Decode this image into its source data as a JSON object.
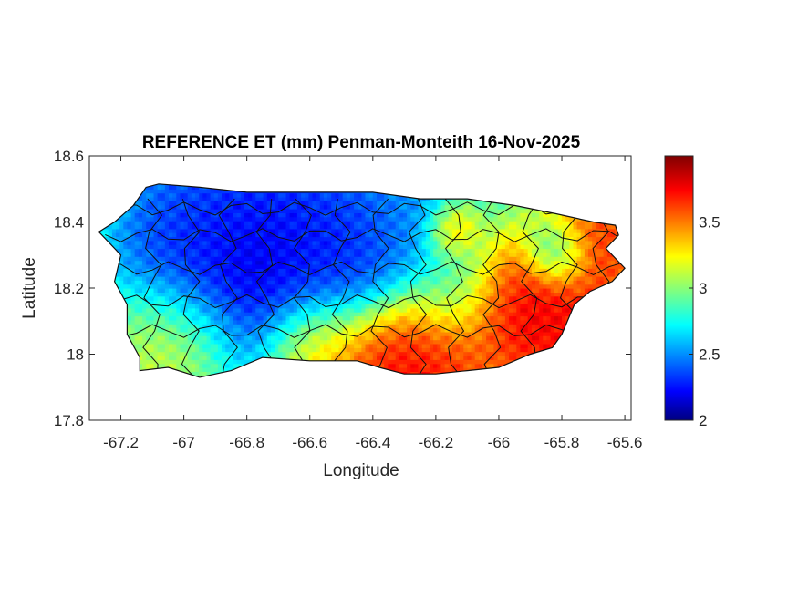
{
  "chart_data": {
    "type": "heatmap",
    "title": "REFERENCE ET (mm) Penman-Monteith 16-Nov-2025",
    "xlabel": "Longitude",
    "ylabel": "Latitude",
    "xlim": [
      -67.3,
      -65.58
    ],
    "ylim": [
      17.8,
      18.6
    ],
    "xticks": [
      -67.2,
      -67,
      -66.8,
      -66.6,
      -66.4,
      -66.2,
      -66,
      -65.8,
      -65.6
    ],
    "xtick_labels": [
      "-67.2",
      "-67",
      "-66.8",
      "-66.6",
      "-66.4",
      "-66.2",
      "-66",
      "-65.8",
      "-65.6"
    ],
    "yticks": [
      17.8,
      18,
      18.2,
      18.4,
      18.6
    ],
    "ytick_labels": [
      "17.8",
      "18",
      "18.2",
      "18.4",
      "18.6"
    ],
    "colorbar": {
      "colormap": "jet",
      "range": [
        2,
        4
      ],
      "ticks": [
        2,
        2.5,
        3,
        3.5
      ],
      "tick_labels": [
        "2",
        "2.5",
        "3",
        "3.5"
      ]
    },
    "outline": [
      [
        -67.12,
        18.505
      ],
      [
        -67.08,
        18.515
      ],
      [
        -66.95,
        18.505
      ],
      [
        -66.8,
        18.49
      ],
      [
        -66.6,
        18.49
      ],
      [
        -66.4,
        18.49
      ],
      [
        -66.25,
        18.47
      ],
      [
        -66.1,
        18.47
      ],
      [
        -65.95,
        18.45
      ],
      [
        -65.82,
        18.425
      ],
      [
        -65.7,
        18.4
      ],
      [
        -65.63,
        18.39
      ],
      [
        -65.62,
        18.36
      ],
      [
        -65.66,
        18.32
      ],
      [
        -65.6,
        18.26
      ],
      [
        -65.64,
        18.22
      ],
      [
        -65.71,
        18.19
      ],
      [
        -65.76,
        18.15
      ],
      [
        -65.8,
        18.06
      ],
      [
        -65.83,
        18.02
      ],
      [
        -65.9,
        18.0
      ],
      [
        -66.0,
        17.96
      ],
      [
        -66.1,
        17.95
      ],
      [
        -66.2,
        17.94
      ],
      [
        -66.3,
        17.94
      ],
      [
        -66.38,
        17.96
      ],
      [
        -66.45,
        17.98
      ],
      [
        -66.6,
        17.98
      ],
      [
        -66.75,
        17.99
      ],
      [
        -66.85,
        17.95
      ],
      [
        -66.95,
        17.93
      ],
      [
        -67.05,
        17.96
      ],
      [
        -67.14,
        17.95
      ],
      [
        -67.14,
        17.99
      ],
      [
        -67.18,
        18.06
      ],
      [
        -67.18,
        18.15
      ],
      [
        -67.22,
        18.22
      ],
      [
        -67.2,
        18.3
      ],
      [
        -67.27,
        18.37
      ],
      [
        -67.22,
        18.4
      ],
      [
        -67.16,
        18.45
      ]
    ],
    "value_field": {
      "base": 2.9,
      "hotspots": [
        {
          "lon": -66.78,
          "lat": 18.22,
          "value": 2.0,
          "radius": 0.18
        },
        {
          "lon": -66.9,
          "lat": 18.3,
          "value": 2.2,
          "radius": 0.15
        },
        {
          "lon": -66.6,
          "lat": 18.35,
          "value": 2.3,
          "radius": 0.15
        },
        {
          "lon": -66.45,
          "lat": 18.3,
          "value": 2.25,
          "radius": 0.12
        },
        {
          "lon": -66.95,
          "lat": 18.42,
          "value": 2.4,
          "radius": 0.12
        },
        {
          "lon": -66.3,
          "lat": 18.4,
          "value": 2.5,
          "radius": 0.1
        },
        {
          "lon": -66.35,
          "lat": 17.97,
          "value": 3.9,
          "radius": 0.13
        },
        {
          "lon": -66.2,
          "lat": 17.98,
          "value": 3.8,
          "radius": 0.12
        },
        {
          "lon": -65.85,
          "lat": 18.12,
          "value": 3.95,
          "radius": 0.12
        },
        {
          "lon": -65.95,
          "lat": 18.15,
          "value": 3.8,
          "radius": 0.1
        },
        {
          "lon": -65.68,
          "lat": 18.33,
          "value": 3.8,
          "radius": 0.1
        },
        {
          "lon": -65.82,
          "lat": 18.3,
          "value": 2.5,
          "radius": 0.06
        },
        {
          "lon": -66.6,
          "lat": 18.03,
          "value": 3.6,
          "radius": 0.1
        },
        {
          "lon": -67.0,
          "lat": 18.05,
          "value": 3.4,
          "radius": 0.12
        },
        {
          "lon": -66.15,
          "lat": 18.37,
          "value": 3.6,
          "radius": 0.05
        },
        {
          "lon": -66.15,
          "lat": 18.2,
          "value": 2.8,
          "radius": 0.1
        }
      ]
    }
  }
}
